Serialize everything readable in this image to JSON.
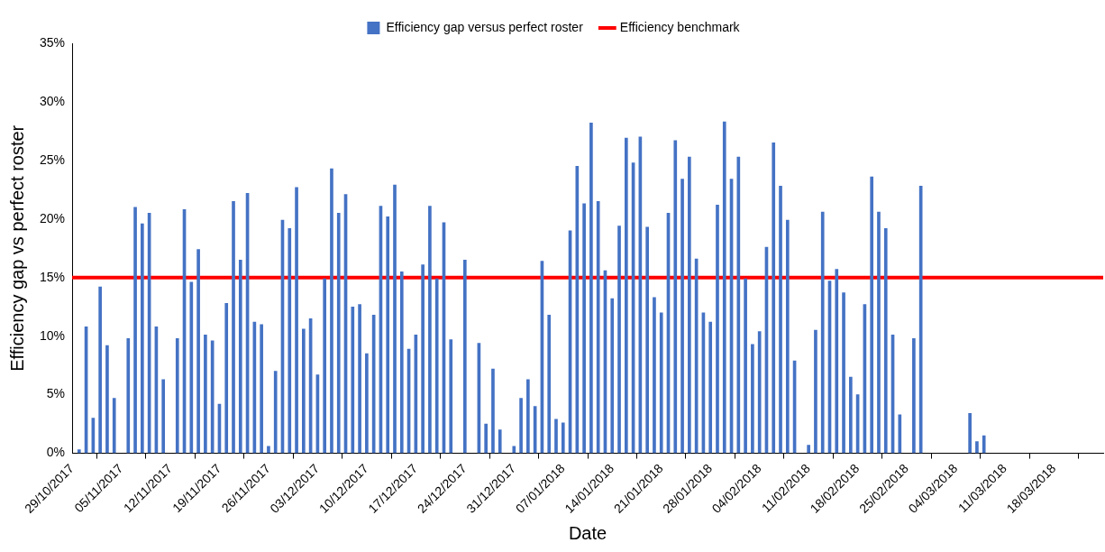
{
  "chart_data": {
    "type": "bar",
    "xlabel": "Date",
    "ylabel": "Efficiency gap vs perfect roster",
    "xlim": [
      "2017-10-29",
      "2018-03-25"
    ],
    "xticks": [
      {
        "value": "2017-10-29",
        "label": "29/10/2017"
      },
      {
        "value": "2017-11-05",
        "label": "05/11/2017"
      },
      {
        "value": "2017-11-12",
        "label": "12/11/2017"
      },
      {
        "value": "2017-11-19",
        "label": "19/11/2017"
      },
      {
        "value": "2017-11-26",
        "label": "26/11/2017"
      },
      {
        "value": "2017-12-03",
        "label": "03/12/2017"
      },
      {
        "value": "2017-12-10",
        "label": "10/12/2017"
      },
      {
        "value": "2017-12-17",
        "label": "17/12/2017"
      },
      {
        "value": "2017-12-24",
        "label": "24/12/2017"
      },
      {
        "value": "2017-12-31",
        "label": "31/12/2017"
      },
      {
        "value": "2018-01-07",
        "label": "07/01/2018"
      },
      {
        "value": "2018-01-14",
        "label": "14/01/2018"
      },
      {
        "value": "2018-01-21",
        "label": "21/01/2018"
      },
      {
        "value": "2018-01-28",
        "label": "28/01/2018"
      },
      {
        "value": "2018-02-04",
        "label": "04/02/2018"
      },
      {
        "value": "2018-02-11",
        "label": "11/02/2018"
      },
      {
        "value": "2018-02-18",
        "label": "18/02/2018"
      },
      {
        "value": "2018-02-25",
        "label": "25/02/2018"
      },
      {
        "value": "2018-03-04",
        "label": "04/03/2018"
      },
      {
        "value": "2018-03-11",
        "label": "11/03/2018"
      },
      {
        "value": "2018-03-18",
        "label": "18/03/2018"
      }
    ],
    "ylim": [
      0,
      35
    ],
    "yticks": [
      {
        "value": 0,
        "label": "0%"
      },
      {
        "value": 5,
        "label": "5%"
      },
      {
        "value": 10,
        "label": "10%"
      },
      {
        "value": 15,
        "label": "15%"
      },
      {
        "value": 20,
        "label": "20%"
      },
      {
        "value": 25,
        "label": "25%"
      },
      {
        "value": 30,
        "label": "30%"
      },
      {
        "value": 35,
        "label": "35%"
      }
    ],
    "grid": false,
    "legend": "top",
    "x": [
      "2017-10-30",
      "2017-10-31",
      "2017-11-01",
      "2017-11-02",
      "2017-11-03",
      "2017-11-04",
      "2017-11-06",
      "2017-11-07",
      "2017-11-08",
      "2017-11-09",
      "2017-11-10",
      "2017-11-11",
      "2017-11-13",
      "2017-11-14",
      "2017-11-15",
      "2017-11-16",
      "2017-11-17",
      "2017-11-18",
      "2017-11-19",
      "2017-11-20",
      "2017-11-21",
      "2017-11-22",
      "2017-11-23",
      "2017-11-24",
      "2017-11-25",
      "2017-11-26",
      "2017-11-27",
      "2017-11-28",
      "2017-11-29",
      "2017-11-30",
      "2017-12-01",
      "2017-12-02",
      "2017-12-03",
      "2017-12-04",
      "2017-12-05",
      "2017-12-06",
      "2017-12-07",
      "2017-12-08",
      "2017-12-09",
      "2017-12-10",
      "2017-12-11",
      "2017-12-12",
      "2017-12-13",
      "2017-12-14",
      "2017-12-15",
      "2017-12-16",
      "2017-12-17",
      "2017-12-18",
      "2017-12-19",
      "2017-12-20",
      "2017-12-21",
      "2017-12-22",
      "2017-12-24",
      "2017-12-26",
      "2017-12-27",
      "2017-12-28",
      "2017-12-29",
      "2017-12-31",
      "2018-01-01",
      "2018-01-02",
      "2018-01-03",
      "2018-01-04",
      "2018-01-05",
      "2018-01-06",
      "2018-01-07",
      "2018-01-08",
      "2018-01-09",
      "2018-01-10",
      "2018-01-11",
      "2018-01-12",
      "2018-01-13",
      "2018-01-14",
      "2018-01-15",
      "2018-01-16",
      "2018-01-17",
      "2018-01-18",
      "2018-01-19",
      "2018-01-20",
      "2018-01-21",
      "2018-01-22",
      "2018-01-23",
      "2018-01-24",
      "2018-01-25",
      "2018-01-26",
      "2018-01-27",
      "2018-01-28",
      "2018-01-29",
      "2018-01-30",
      "2018-01-31",
      "2018-02-01",
      "2018-02-02",
      "2018-02-03",
      "2018-02-04",
      "2018-02-05",
      "2018-02-06",
      "2018-02-07",
      "2018-02-08",
      "2018-02-09",
      "2018-02-11",
      "2018-02-12",
      "2018-02-13",
      "2018-02-14",
      "2018-02-15",
      "2018-02-16",
      "2018-02-17",
      "2018-02-18",
      "2018-02-19",
      "2018-02-20",
      "2018-02-21",
      "2018-02-22",
      "2018-02-23",
      "2018-02-24",
      "2018-02-26",
      "2018-02-27",
      "2018-03-06",
      "2018-03-07",
      "2018-03-08"
    ],
    "series": [
      {
        "name": "Efficiency gap versus perfect roster",
        "color": "#4472c4",
        "values": [
          0.3,
          10.8,
          3.0,
          14.2,
          9.2,
          4.7,
          9.8,
          21.0,
          19.6,
          20.5,
          10.8,
          6.3,
          9.8,
          20.8,
          14.6,
          17.4,
          10.1,
          9.6,
          4.2,
          12.8,
          21.5,
          16.5,
          22.2,
          11.2,
          11.0,
          0.6,
          7.0,
          19.9,
          19.2,
          22.7,
          10.6,
          11.5,
          6.7,
          14.9,
          24.3,
          20.5,
          22.1,
          12.5,
          12.7,
          8.5,
          11.8,
          21.1,
          20.2,
          22.9,
          15.5,
          8.9,
          10.1,
          16.1,
          21.1,
          14.9,
          19.7,
          9.7,
          16.5,
          9.4,
          2.5,
          7.2,
          2.0,
          0.6,
          4.7,
          6.3,
          4.0,
          16.4,
          11.8,
          2.9,
          2.6,
          19.0,
          24.5,
          21.3,
          28.2,
          21.5,
          15.6,
          13.2,
          19.4,
          26.9,
          24.8,
          27.0,
          19.3,
          13.3,
          12.0,
          20.5,
          26.7,
          23.4,
          25.3,
          16.6,
          12.0,
          11.2,
          21.2,
          28.3,
          23.4,
          25.3,
          14.9,
          9.3,
          10.4,
          17.6,
          26.5,
          22.8,
          19.9,
          7.9,
          0.7,
          10.5,
          20.6,
          14.7,
          15.7,
          13.7,
          6.5,
          5.0,
          12.7,
          23.6,
          20.6,
          19.2,
          10.1,
          3.3,
          9.8,
          22.8,
          3.4,
          1.0,
          1.5
        ]
      }
    ],
    "ref_lines": [
      {
        "axis": "y",
        "value": 15,
        "label": "Efficiency benchmark",
        "color": "#ff0000",
        "line_style": "solid"
      }
    ]
  }
}
